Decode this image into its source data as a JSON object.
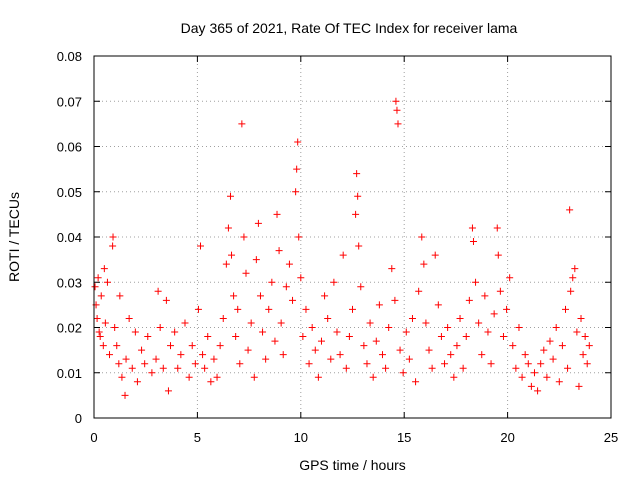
{
  "chart_data": {
    "type": "scatter",
    "title": "Day 365 of 2021, Rate Of TEC Index for receiver lama",
    "xlabel": "GPS time / hours",
    "ylabel": "ROTI / TECUs",
    "xlim": [
      0,
      25
    ],
    "ylim": [
      0,
      0.08
    ],
    "xticks": [
      "0",
      "5",
      "10",
      "15",
      "20",
      "25"
    ],
    "yticks": [
      "0",
      "0.01",
      "0.02",
      "0.03",
      "0.04",
      "0.05",
      "0.06",
      "0.07",
      "0.08"
    ],
    "grid": true,
    "marker": "+",
    "color": "#ff0000",
    "series": [
      {
        "points": [
          [
            0.05,
            0.029
          ],
          [
            0.1,
            0.025
          ],
          [
            0.15,
            0.022
          ],
          [
            0.2,
            0.031
          ],
          [
            0.25,
            0.019
          ],
          [
            0.3,
            0.018
          ],
          [
            0.35,
            0.027
          ],
          [
            0.45,
            0.016
          ],
          [
            0.5,
            0.033
          ],
          [
            0.55,
            0.021
          ],
          [
            0.65,
            0.03
          ],
          [
            0.75,
            0.014
          ],
          [
            0.9,
            0.038
          ],
          [
            0.92,
            0.04
          ],
          [
            1.0,
            0.02
          ],
          [
            1.1,
            0.016
          ],
          [
            1.2,
            0.012
          ],
          [
            1.25,
            0.027
          ],
          [
            1.35,
            0.009
          ],
          [
            1.5,
            0.005
          ],
          [
            1.55,
            0.013
          ],
          [
            1.7,
            0.022
          ],
          [
            1.85,
            0.011
          ],
          [
            2.0,
            0.019
          ],
          [
            2.1,
            0.008
          ],
          [
            2.3,
            0.015
          ],
          [
            2.45,
            0.012
          ],
          [
            2.6,
            0.018
          ],
          [
            2.8,
            0.01
          ],
          [
            3.0,
            0.013
          ],
          [
            3.1,
            0.028
          ],
          [
            3.2,
            0.02
          ],
          [
            3.35,
            0.011
          ],
          [
            3.5,
            0.026
          ],
          [
            3.6,
            0.006
          ],
          [
            3.7,
            0.016
          ],
          [
            3.9,
            0.019
          ],
          [
            4.05,
            0.011
          ],
          [
            4.2,
            0.014
          ],
          [
            4.4,
            0.021
          ],
          [
            4.6,
            0.009
          ],
          [
            4.75,
            0.016
          ],
          [
            4.9,
            0.012
          ],
          [
            5.05,
            0.024
          ],
          [
            5.15,
            0.038
          ],
          [
            5.25,
            0.014
          ],
          [
            5.35,
            0.011
          ],
          [
            5.5,
            0.018
          ],
          [
            5.65,
            0.008
          ],
          [
            5.8,
            0.013
          ],
          [
            5.95,
            0.009
          ],
          [
            6.1,
            0.016
          ],
          [
            6.25,
            0.022
          ],
          [
            6.4,
            0.034
          ],
          [
            6.5,
            0.042
          ],
          [
            6.6,
            0.049
          ],
          [
            6.65,
            0.036
          ],
          [
            6.75,
            0.027
          ],
          [
            6.85,
            0.018
          ],
          [
            6.95,
            0.024
          ],
          [
            7.05,
            0.012
          ],
          [
            7.15,
            0.065
          ],
          [
            7.25,
            0.04
          ],
          [
            7.35,
            0.032
          ],
          [
            7.45,
            0.015
          ],
          [
            7.6,
            0.021
          ],
          [
            7.75,
            0.009
          ],
          [
            7.85,
            0.035
          ],
          [
            7.95,
            0.043
          ],
          [
            8.05,
            0.027
          ],
          [
            8.15,
            0.019
          ],
          [
            8.3,
            0.013
          ],
          [
            8.45,
            0.024
          ],
          [
            8.6,
            0.03
          ],
          [
            8.75,
            0.017
          ],
          [
            8.85,
            0.045
          ],
          [
            8.95,
            0.037
          ],
          [
            9.05,
            0.021
          ],
          [
            9.15,
            0.014
          ],
          [
            9.3,
            0.029
          ],
          [
            9.45,
            0.034
          ],
          [
            9.6,
            0.026
          ],
          [
            9.75,
            0.05
          ],
          [
            9.8,
            0.055
          ],
          [
            9.85,
            0.061
          ],
          [
            9.9,
            0.04
          ],
          [
            10.0,
            0.031
          ],
          [
            10.1,
            0.018
          ],
          [
            10.25,
            0.024
          ],
          [
            10.4,
            0.012
          ],
          [
            10.55,
            0.02
          ],
          [
            10.7,
            0.015
          ],
          [
            10.85,
            0.009
          ],
          [
            11.0,
            0.017
          ],
          [
            11.15,
            0.027
          ],
          [
            11.3,
            0.022
          ],
          [
            11.45,
            0.013
          ],
          [
            11.6,
            0.03
          ],
          [
            11.75,
            0.019
          ],
          [
            11.9,
            0.014
          ],
          [
            12.05,
            0.036
          ],
          [
            12.2,
            0.011
          ],
          [
            12.35,
            0.018
          ],
          [
            12.5,
            0.024
          ],
          [
            12.65,
            0.045
          ],
          [
            12.7,
            0.054
          ],
          [
            12.75,
            0.049
          ],
          [
            12.8,
            0.038
          ],
          [
            12.9,
            0.029
          ],
          [
            13.05,
            0.016
          ],
          [
            13.2,
            0.012
          ],
          [
            13.35,
            0.021
          ],
          [
            13.5,
            0.009
          ],
          [
            13.65,
            0.017
          ],
          [
            13.8,
            0.025
          ],
          [
            13.95,
            0.014
          ],
          [
            14.1,
            0.011
          ],
          [
            14.25,
            0.02
          ],
          [
            14.4,
            0.033
          ],
          [
            14.55,
            0.026
          ],
          [
            14.6,
            0.07
          ],
          [
            14.65,
            0.068
          ],
          [
            14.7,
            0.065
          ],
          [
            14.8,
            0.015
          ],
          [
            14.95,
            0.01
          ],
          [
            15.1,
            0.019
          ],
          [
            15.25,
            0.013
          ],
          [
            15.4,
            0.022
          ],
          [
            15.55,
            0.008
          ],
          [
            15.7,
            0.028
          ],
          [
            15.85,
            0.04
          ],
          [
            15.95,
            0.034
          ],
          [
            16.05,
            0.021
          ],
          [
            16.2,
            0.015
          ],
          [
            16.35,
            0.011
          ],
          [
            16.5,
            0.036
          ],
          [
            16.65,
            0.025
          ],
          [
            16.8,
            0.018
          ],
          [
            16.95,
            0.012
          ],
          [
            17.1,
            0.02
          ],
          [
            17.25,
            0.014
          ],
          [
            17.4,
            0.009
          ],
          [
            17.55,
            0.016
          ],
          [
            17.7,
            0.022
          ],
          [
            17.85,
            0.011
          ],
          [
            18.0,
            0.018
          ],
          [
            18.15,
            0.026
          ],
          [
            18.3,
            0.042
          ],
          [
            18.35,
            0.039
          ],
          [
            18.45,
            0.03
          ],
          [
            18.6,
            0.021
          ],
          [
            18.75,
            0.014
          ],
          [
            18.9,
            0.027
          ],
          [
            19.05,
            0.019
          ],
          [
            19.2,
            0.012
          ],
          [
            19.35,
            0.023
          ],
          [
            19.5,
            0.042
          ],
          [
            19.55,
            0.036
          ],
          [
            19.65,
            0.028
          ],
          [
            19.8,
            0.018
          ],
          [
            19.95,
            0.024
          ],
          [
            20.1,
            0.031
          ],
          [
            20.25,
            0.016
          ],
          [
            20.4,
            0.011
          ],
          [
            20.55,
            0.02
          ],
          [
            20.7,
            0.009
          ],
          [
            20.85,
            0.014
          ],
          [
            21.0,
            0.012
          ],
          [
            21.15,
            0.007
          ],
          [
            21.3,
            0.01
          ],
          [
            21.45,
            0.006
          ],
          [
            21.6,
            0.012
          ],
          [
            21.75,
            0.015
          ],
          [
            21.9,
            0.009
          ],
          [
            22.05,
            0.017
          ],
          [
            22.2,
            0.013
          ],
          [
            22.35,
            0.02
          ],
          [
            22.5,
            0.008
          ],
          [
            22.65,
            0.016
          ],
          [
            22.8,
            0.024
          ],
          [
            22.9,
            0.011
          ],
          [
            23.0,
            0.046
          ],
          [
            23.05,
            0.028
          ],
          [
            23.15,
            0.031
          ],
          [
            23.25,
            0.033
          ],
          [
            23.35,
            0.019
          ],
          [
            23.45,
            0.007
          ],
          [
            23.55,
            0.022
          ],
          [
            23.65,
            0.014
          ],
          [
            23.75,
            0.018
          ],
          [
            23.85,
            0.012
          ],
          [
            23.95,
            0.016
          ]
        ]
      }
    ]
  }
}
